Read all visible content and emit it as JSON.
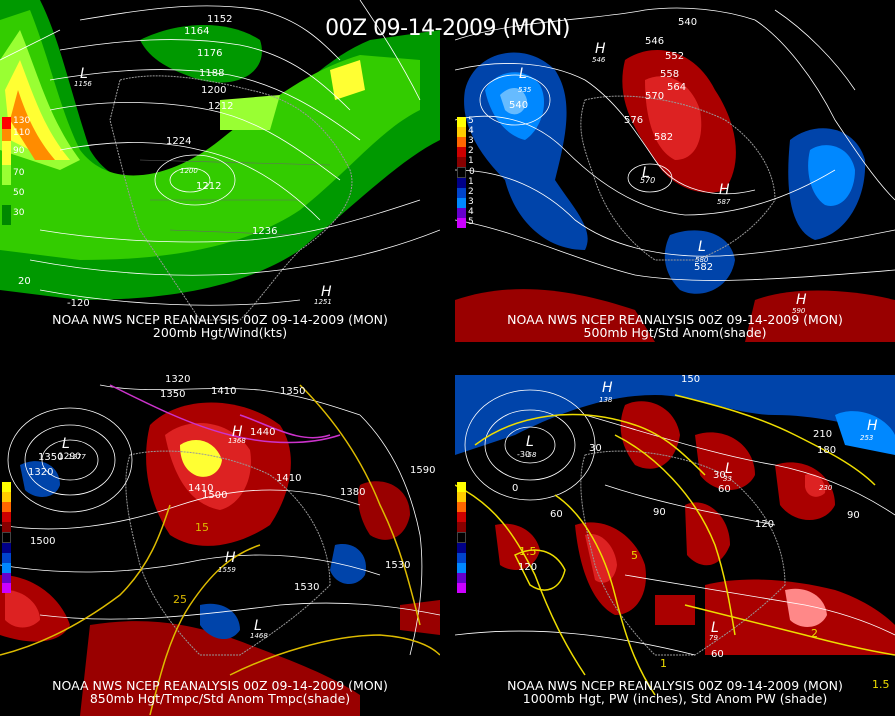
{
  "header": {
    "title": "00Z 09-14-2009 (MON)"
  },
  "panels": [
    {
      "id": "200mb",
      "caption_line1": "NOAA NWS NCEP REANALYSIS 00Z 09-14-2009 (MON)",
      "caption_line2": "200mb Hgt/Wind(kts)",
      "legend": [
        {
          "label": "130",
          "color": "#ff0000"
        },
        {
          "label": "110",
          "color": "#ff8c00"
        },
        {
          "label": "90",
          "color": "#ffff33"
        },
        {
          "label": "70",
          "color": "#99ff33"
        },
        {
          "label": "50",
          "color": "#33cc00"
        },
        {
          "label": "30",
          "color": "#008800"
        }
      ],
      "contour_labels": [
        "1152",
        "1164",
        "1176",
        "1188",
        "1200",
        "1212",
        "1224",
        "1212",
        "1236"
      ],
      "lows": [
        {
          "label": "L",
          "value": "1156"
        },
        {
          "label": "L",
          "value": "1200"
        }
      ],
      "highs": [
        {
          "label": "H",
          "value": "1251"
        }
      ],
      "axis_labels": [
        "20",
        "-120"
      ]
    },
    {
      "id": "500mb",
      "caption_line1": "NOAA NWS NCEP REANALYSIS 00Z 09-14-2009 (MON)",
      "caption_line2": "500mb Hgt/Std Anom(shade)",
      "legend": [
        {
          "label": "5",
          "color": "#ffff00"
        },
        {
          "label": "4",
          "color": "#ffcc00"
        },
        {
          "label": "3",
          "color": "#ff6600"
        },
        {
          "label": "2",
          "color": "#cc0000"
        },
        {
          "label": "1",
          "color": "#880000"
        },
        {
          "label": "0",
          "color": "#000000"
        },
        {
          "label": "1",
          "color": "#000088"
        },
        {
          "label": "2",
          "color": "#0044cc"
        },
        {
          "label": "3",
          "color": "#0088ff"
        },
        {
          "label": "4",
          "color": "#6600cc"
        },
        {
          "label": "5",
          "color": "#cc00ff"
        }
      ],
      "contour_labels": [
        "540",
        "546",
        "552",
        "558",
        "564",
        "570",
        "576",
        "582",
        "540",
        "582"
      ],
      "lows": [
        {
          "label": "L",
          "value": "535"
        },
        {
          "label": "L",
          "value": "570"
        },
        {
          "label": "L",
          "value": "580"
        }
      ],
      "highs": [
        {
          "label": "H",
          "value": "546"
        },
        {
          "label": "H",
          "value": "587"
        },
        {
          "label": "H",
          "value": "590"
        }
      ]
    },
    {
      "id": "850mb",
      "caption_line1": "NOAA NWS NCEP REANALYSIS 00Z 09-14-2009 (MON)",
      "caption_line2": "850mb Hgt/Tmpc/Std Anom Tmpc(shade)",
      "contour_labels": [
        "1320",
        "1350",
        "1410",
        "1350",
        "1440",
        "1410",
        "1500",
        "1410",
        "1590",
        "1500",
        "1530",
        "1530",
        "1350",
        "1320",
        "1290",
        "1380"
      ],
      "temp_labels": [
        "15",
        "25"
      ],
      "lows": [
        {
          "label": "L",
          "value": "1277"
        },
        {
          "label": "L",
          "value": "1468"
        }
      ],
      "highs": [
        {
          "label": "H",
          "value": "1559"
        },
        {
          "label": "H",
          "value": "1368"
        }
      ]
    },
    {
      "id": "1000mb",
      "caption_line1": "NOAA NWS NCEP REANALYSIS 00Z 09-14-2009 (MON)",
      "caption_line2": "1000mb Hgt, PW (inches), Std Anom PW (shade)",
      "contour_labels": [
        "150",
        "210",
        "180",
        "90",
        "120",
        "90",
        "60",
        "30",
        "0",
        "-30",
        "60",
        "150",
        "30",
        "60",
        "120"
      ],
      "pw_labels": [
        "1.5",
        "1",
        "2",
        "5",
        "1.5"
      ],
      "lows": [
        {
          "label": "L",
          "value": "-58"
        },
        {
          "label": "L",
          "value": "33"
        },
        {
          "label": "L",
          "value": "79"
        }
      ],
      "highs": [
        {
          "label": "H",
          "value": "253"
        },
        {
          "label": "H",
          "value": "138"
        },
        {
          "label": "H",
          "value": "230"
        }
      ]
    }
  ]
}
